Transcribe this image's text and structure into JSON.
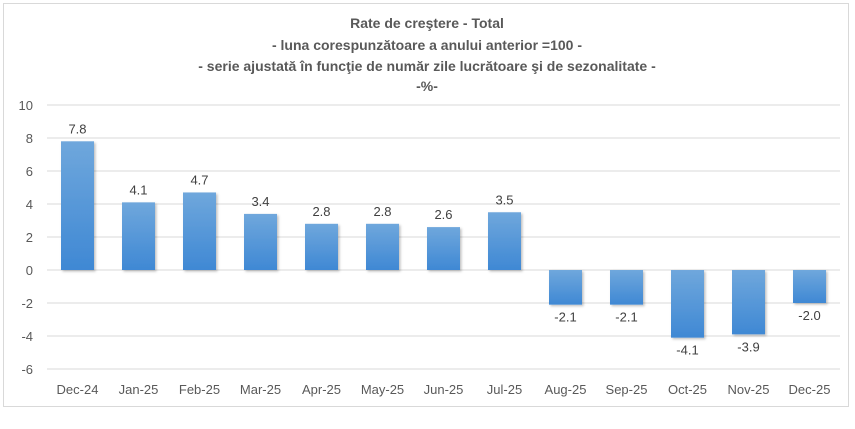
{
  "chart_data": {
    "type": "bar",
    "title": "Rate de creştere - Total",
    "subtitles": [
      "- luna corespunzătoare a anului anterior =100 -",
      "- serie ajustată în funcţie de număr zile lucrătoare şi de sezonalitate -",
      "-%-"
    ],
    "categories": [
      "Dec-24",
      "Jan-25",
      "Feb-25",
      "Mar-25",
      "Apr-25",
      "May-25",
      "Jun-25",
      "Jul-25",
      "Aug-25",
      "Sep-25",
      "Oct-25",
      "Nov-25",
      "Dec-25"
    ],
    "values": [
      7.8,
      4.1,
      4.7,
      3.4,
      2.8,
      2.8,
      2.6,
      3.5,
      -2.1,
      -2.1,
      -4.1,
      -3.9,
      -2.0
    ],
    "data_labels": [
      "7.8",
      "4.1",
      "4.7",
      "3.4",
      "2.8",
      "2.8",
      "2.6",
      "3.5",
      "-2.1",
      "-2.1",
      "-4.1",
      "-3.9",
      "-2.0"
    ],
    "xlabel": "",
    "ylabel": "",
    "ylim": [
      -6,
      10
    ],
    "yticks": [
      "10",
      "8",
      "6",
      "4",
      "2",
      "0",
      "-2",
      "-4",
      "-6"
    ],
    "ytick_values": [
      10,
      8,
      6,
      4,
      2,
      0,
      -2,
      -4,
      -6
    ],
    "grid": true,
    "legend": "none",
    "bar_color": "#5b9bd5"
  }
}
